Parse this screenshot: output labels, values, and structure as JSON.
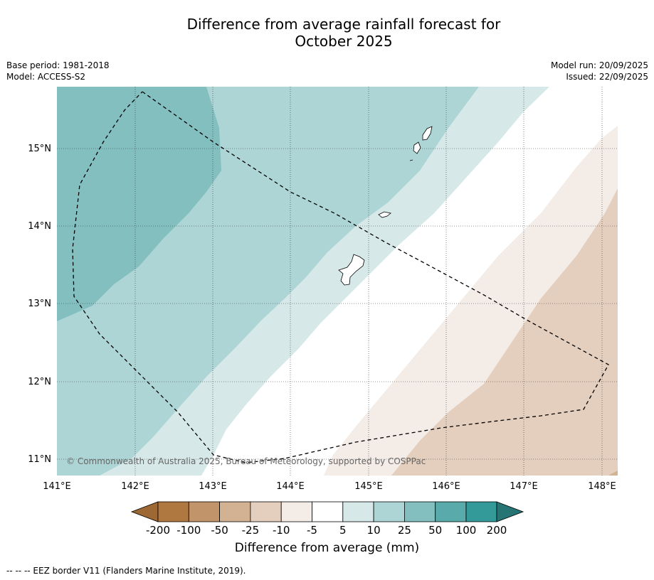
{
  "title": {
    "line1": "Difference from average rainfall forecast for",
    "line2": "October 2025"
  },
  "meta_left": {
    "base_period": "Base period: 1981-2018",
    "model": "Model: ACCESS-S2"
  },
  "meta_right": {
    "model_run": "Model run: 20/09/2025",
    "issued": "Issued: 22/09/2025"
  },
  "map": {
    "x_ticks": [
      "141°E",
      "142°E",
      "143°E",
      "144°E",
      "145°E",
      "146°E",
      "147°E",
      "148°E"
    ],
    "y_ticks": [
      "15°N",
      "14°N",
      "13°N",
      "12°N",
      "11°N"
    ],
    "copyright": "© Commonwealth of Australia 2025, Bureau of Meteorology, supported by COSPPac"
  },
  "colorbar": {
    "labels": [
      "-200",
      "-100",
      "-50",
      "-25",
      "-10",
      "-5",
      "5",
      "10",
      "25",
      "50",
      "100",
      "200"
    ],
    "colors": {
      "below_min": "#9e6834",
      "n200_100": "#b07841",
      "n100_50": "#c1946a",
      "n50_25": "#d3b193",
      "n25_10": "#e4cebd",
      "n10_5": "#f4ece7",
      "n5_5": "#ffffff",
      "p5_10": "#d6e9e8",
      "p10_25": "#aed5d5",
      "p25_50": "#83bfbf",
      "p50_100": "#59abab",
      "p100_200": "#339999",
      "above_max": "#267474"
    },
    "title": "Difference from average (mm)"
  },
  "legend": "--  --  -- EEZ border V11 (Flanders Marine Institute, 2019)."
}
